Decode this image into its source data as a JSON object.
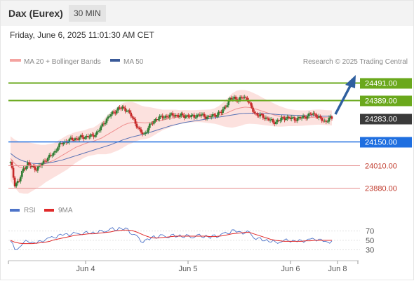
{
  "header": {
    "instrument": "Dax (Eurex)",
    "timeframe": "30 MIN"
  },
  "datetime": "Friday, June 6, 2025 11:01:30 AM CET",
  "legend": {
    "bb_label": "MA 20 + Bollinger Bands",
    "ma50_label": "MA 50",
    "credit": "Research © 2025 Trading Central",
    "rsi_label": "RSI",
    "rsi_ma_label": "9MA"
  },
  "colors": {
    "bullish": "#2e7d32",
    "bearish": "#c62828",
    "resistance": "#6aa81c",
    "support": "#1f6fe0",
    "target": "#d55050",
    "last_price_bg": "#3a3a3a",
    "trend_arrow": "#2f5f9f",
    "bollinger_fill": "#fbd9d6",
    "ma20": "#ef8f8f",
    "ma50": "#5a73b5",
    "rsi_line": "#4e74c9",
    "rsi_ma": "#e02a2a"
  },
  "chart_data": {
    "type": "candlestick",
    "x_tick_labels": [
      "Jun 4",
      "Jun 5",
      "Jun 6",
      "Jun 8"
    ],
    "ylim": [
      23830,
      24550
    ],
    "levels": [
      {
        "label": "24491.00",
        "value": 24491,
        "kind": "resistance"
      },
      {
        "label": "24389.00",
        "value": 24389,
        "kind": "resistance"
      },
      {
        "label": "24283.00",
        "value": 24283,
        "kind": "last"
      },
      {
        "label": "24150.00",
        "value": 24150,
        "kind": "support"
      },
      {
        "label": "24010.00",
        "value": 24010,
        "kind": "target"
      },
      {
        "label": "23880.00",
        "value": 23880,
        "kind": "target"
      }
    ],
    "price_path": [
      24025,
      23900,
      23920,
      23990,
      24020,
      24000,
      23990,
      24010,
      24040,
      24060,
      24080,
      24120,
      24140,
      24150,
      24160,
      24165,
      24170,
      24175,
      24180,
      24180,
      24200,
      24230,
      24270,
      24300,
      24320,
      24340,
      24345,
      24335,
      24300,
      24260,
      24210,
      24190,
      24230,
      24260,
      24285,
      24290,
      24295,
      24300,
      24305,
      24300,
      24300,
      24298,
      24295,
      24300,
      24305,
      24298,
      24290,
      24300,
      24310,
      24320,
      24360,
      24395,
      24405,
      24390,
      24410,
      24400,
      24340,
      24310,
      24300,
      24290,
      24280,
      24260,
      24270,
      24280,
      24290,
      24285,
      24280,
      24285,
      24290,
      24300,
      24310,
      24305,
      24280,
      24265,
      24283
    ],
    "ma20": [
      24050,
      24020,
      24000,
      23995,
      23995,
      24000,
      24005,
      24010,
      24020,
      24030,
      24040,
      24055,
      24070,
      24085,
      24100,
      24115,
      24125,
      24135,
      24145,
      24150,
      24160,
      24170,
      24185,
      24200,
      24215,
      24230,
      24245,
      24255,
      24260,
      24262,
      24260,
      24258,
      24260,
      24265,
      24270,
      24275,
      24280,
      24285,
      24290,
      24292,
      24295,
      24296,
      24297,
      24298,
      24298,
      24297,
      24296,
      24298,
      24302,
      24308,
      24318,
      24330,
      24340,
      24346,
      24350,
      24348,
      24342,
      24335,
      24326,
      24318,
      24310,
      24302,
      24296,
      24292,
      24289,
      24287,
      24286,
      24286,
      24287,
      24289,
      24291,
      24292,
      24290,
      24288,
      24287
    ],
    "bb_width": [
      130,
      140,
      150,
      150,
      150,
      140,
      130,
      120,
      110,
      105,
      100,
      100,
      100,
      100,
      95,
      90,
      85,
      80,
      80,
      80,
      85,
      95,
      110,
      120,
      125,
      130,
      130,
      125,
      120,
      110,
      100,
      95,
      90,
      80,
      70,
      60,
      55,
      50,
      45,
      40,
      38,
      36,
      35,
      35,
      36,
      38,
      40,
      45,
      55,
      70,
      85,
      100,
      105,
      105,
      100,
      95,
      90,
      85,
      80,
      75,
      70,
      65,
      60,
      55,
      50,
      48,
      46,
      45,
      44,
      44,
      44,
      44,
      44,
      44,
      44
    ],
    "ma50": [
      24080,
      24060,
      24045,
      24035,
      24028,
      24022,
      24020,
      24020,
      24022,
      24026,
      24030,
      24036,
      24042,
      24050,
      24058,
      24066,
      24074,
      24082,
      24090,
      24098,
      24106,
      24114,
      24122,
      24130,
      24140,
      24150,
      24160,
      24168,
      24176,
      24182,
      24188,
      24195,
      24202,
      24210,
      24218,
      24226,
      24234,
      24242,
      24248,
      24254,
      24260,
      24264,
      24268,
      24272,
      24276,
      24280,
      24284,
      24288,
      24292,
      24296,
      24300,
      24304,
      24308,
      24312,
      24314,
      24315,
      24315,
      24315,
      24314,
      24312,
      24310,
      24308,
      24306,
      24305,
      24304,
      24303,
      24302,
      24301,
      24300,
      24300,
      24299,
      24298,
      24297,
      24297,
      24297
    ],
    "rsi": {
      "ticks": [
        70,
        50,
        30
      ],
      "ylim": [
        20,
        80
      ],
      "values": [
        49,
        30,
        35,
        45,
        48,
        46,
        44,
        48,
        52,
        55,
        57,
        60,
        62,
        63,
        64,
        64,
        65,
        65,
        66,
        66,
        67,
        69,
        71,
        73,
        74,
        75,
        75,
        72,
        65,
        58,
        50,
        48,
        54,
        57,
        59,
        59,
        59,
        59,
        60,
        59,
        59,
        58,
        58,
        59,
        60,
        58,
        57,
        59,
        61,
        63,
        67,
        70,
        70,
        66,
        68,
        66,
        57,
        53,
        51,
        50,
        48,
        45,
        47,
        49,
        50,
        49,
        48,
        49,
        50,
        52,
        53,
        52,
        48,
        46,
        49
      ],
      "ma9": [
        50,
        46,
        44,
        43,
        43,
        43,
        44,
        45,
        46,
        48,
        51,
        53,
        55,
        57,
        59,
        61,
        62,
        63,
        64,
        64,
        65,
        66,
        67,
        68,
        70,
        71,
        72,
        72,
        71,
        68,
        64,
        60,
        57,
        55,
        55,
        56,
        57,
        58,
        59,
        59,
        59,
        59,
        59,
        59,
        59,
        59,
        58,
        58,
        59,
        60,
        62,
        64,
        65,
        66,
        67,
        67,
        64,
        61,
        58,
        55,
        52,
        50,
        49,
        48,
        48,
        48,
        48,
        48,
        49,
        49,
        50,
        50,
        50,
        50,
        50
      ]
    }
  }
}
